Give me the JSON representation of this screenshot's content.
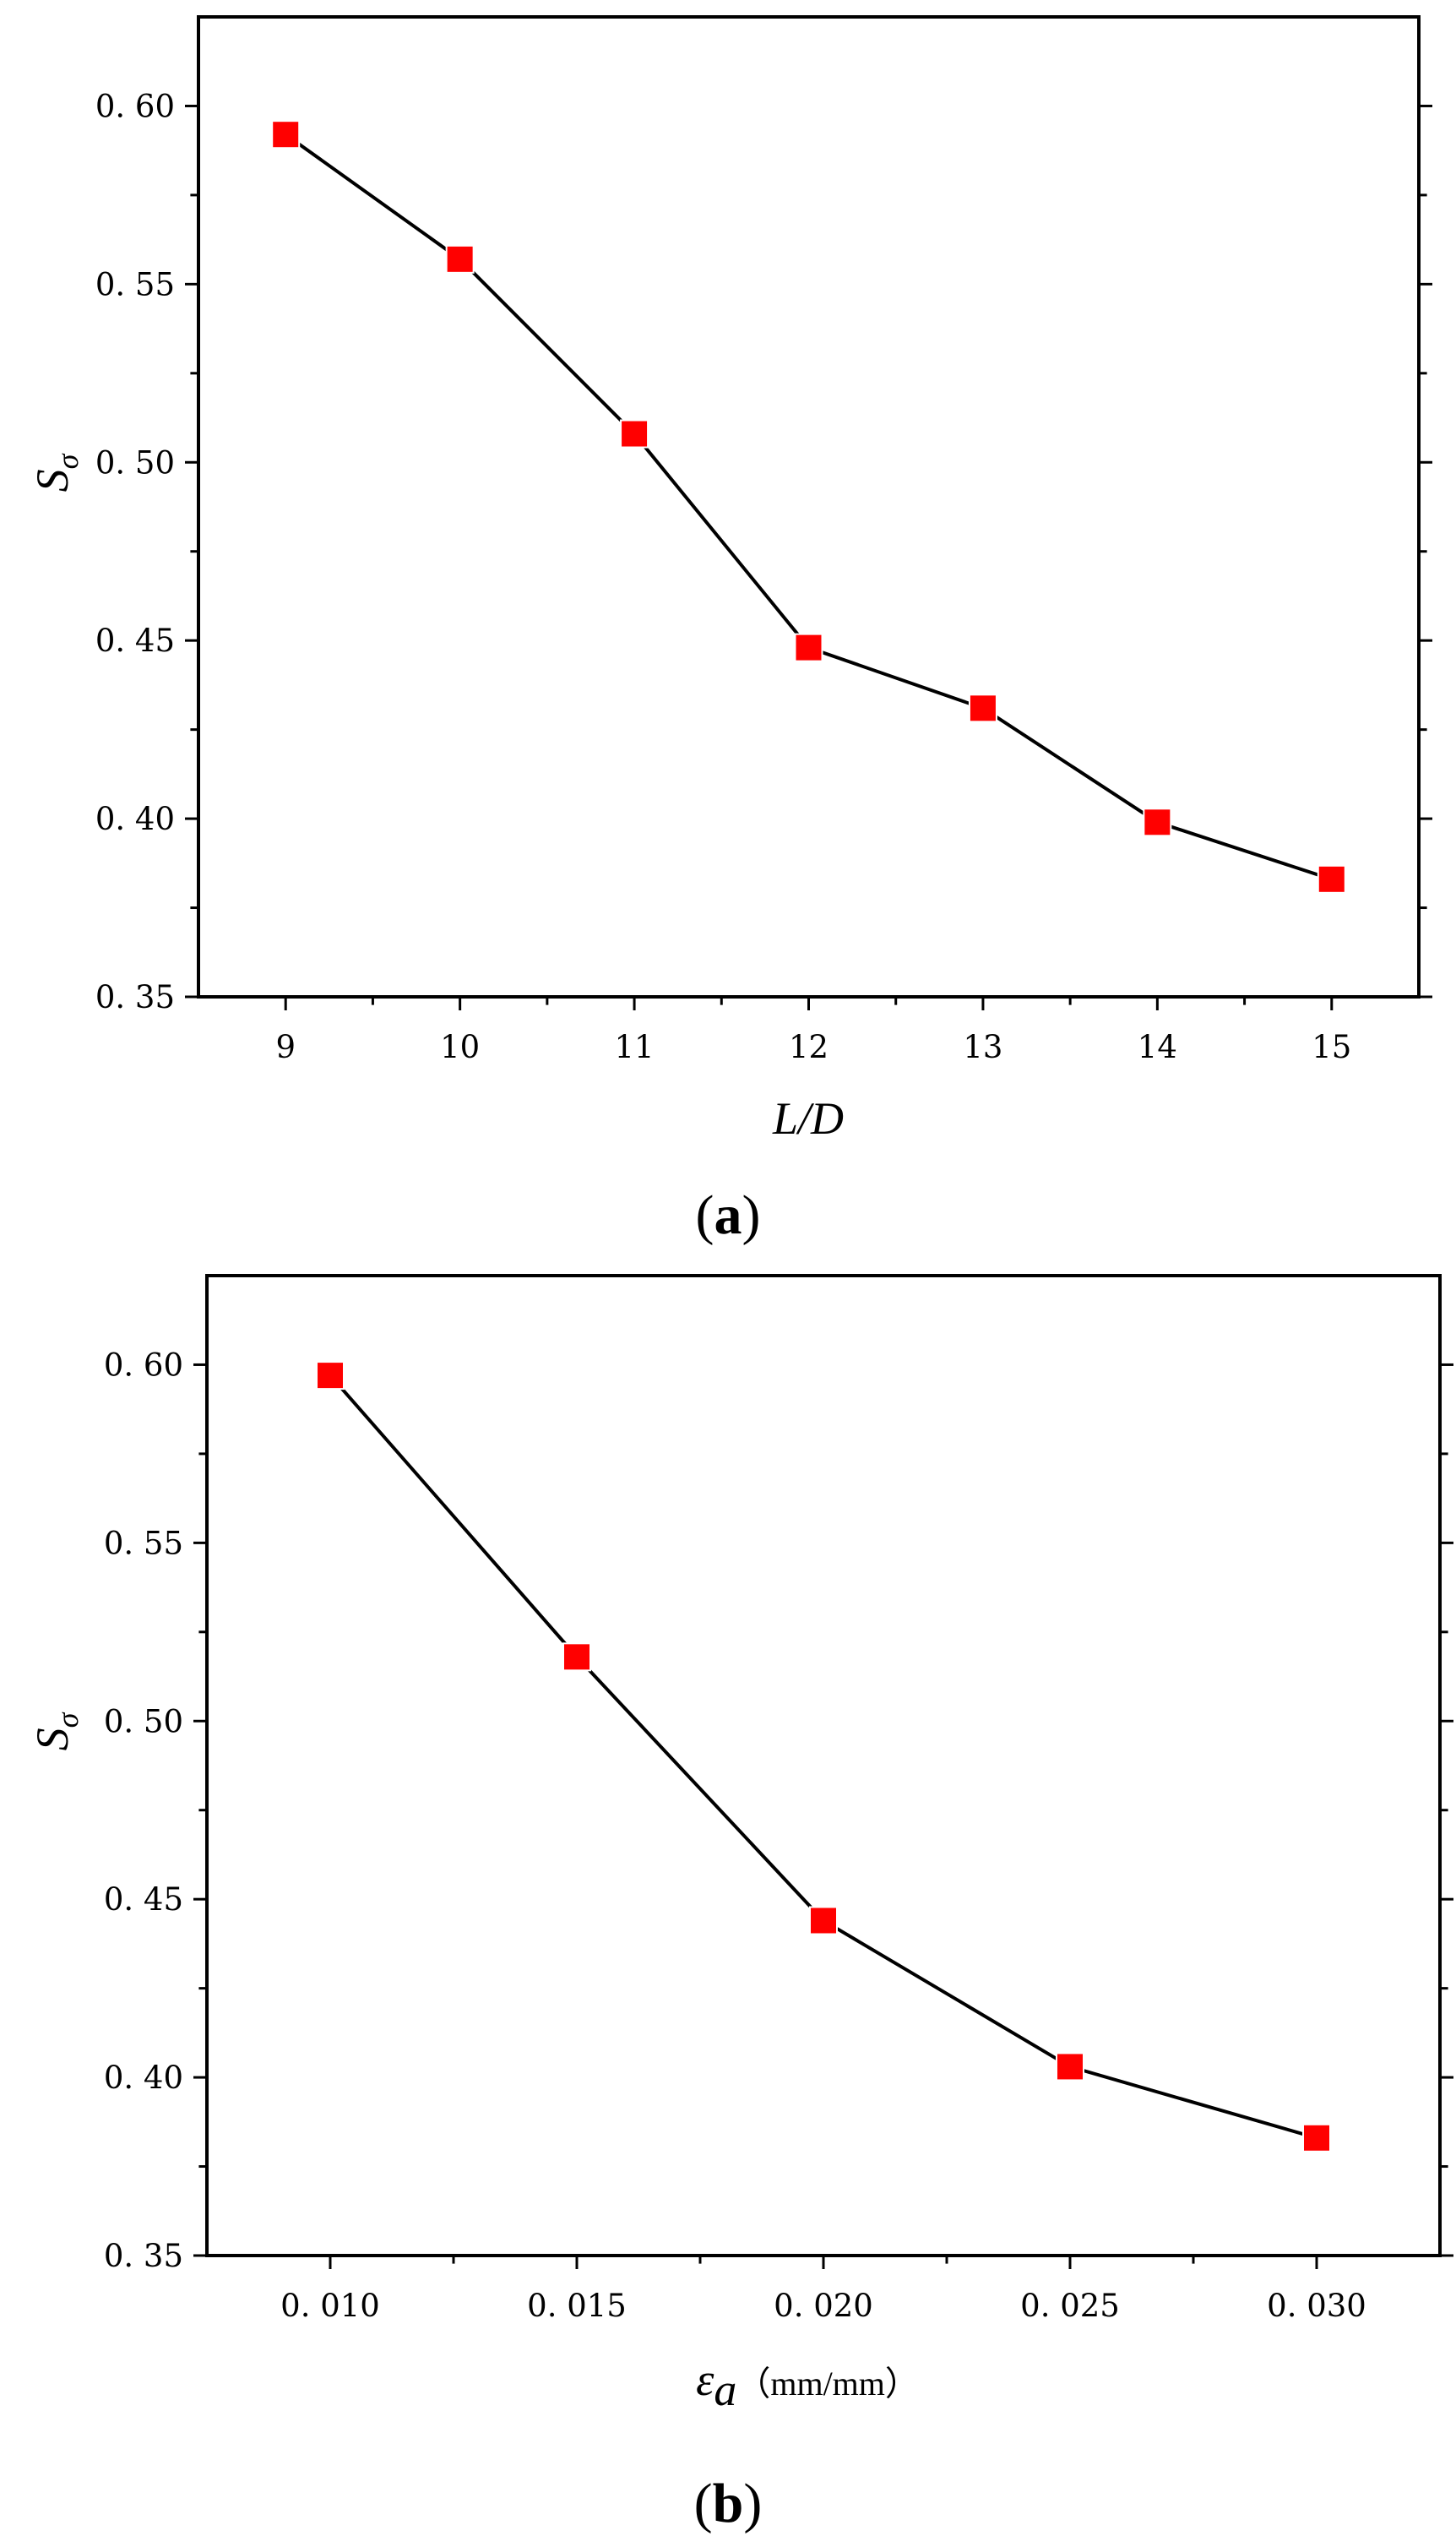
{
  "chart_data": [
    {
      "type": "line",
      "panel_label": {
        "open": "(",
        "letter": "a",
        "close": ")"
      },
      "x": [
        9,
        10,
        11,
        12,
        13,
        14,
        15
      ],
      "xticks": [
        "9",
        "10",
        "11",
        "12",
        "13",
        "14",
        "15"
      ],
      "xlim": [
        8.5,
        15.5
      ],
      "yticks": [
        "0. 35",
        "0. 40",
        "0. 45",
        "0. 50",
        "0. 55",
        "0. 60"
      ],
      "ylim": [
        0.35,
        0.625
      ],
      "xlabel": "L/D",
      "xunit": "",
      "ylabel": {
        "main": "S",
        "sub": "σ"
      },
      "series": [
        {
          "values": [
            0.592,
            0.557,
            0.508,
            0.448,
            0.431,
            0.399,
            0.383
          ],
          "line_color": "#000000",
          "marker_color": "#ff0000",
          "marker": "square"
        }
      ],
      "grid": false
    },
    {
      "type": "line",
      "panel_label": {
        "open": "(",
        "letter": "b",
        "close": ")"
      },
      "x": [
        0.01,
        0.015,
        0.02,
        0.025,
        0.03
      ],
      "xticks": [
        "0. 010",
        "0. 015",
        "0. 020",
        "0. 025",
        "0. 030"
      ],
      "xlim": [
        0.0075,
        0.0325
      ],
      "yticks": [
        "0. 35",
        "0. 40",
        "0. 45",
        "0. 50",
        "0. 55",
        "0. 60"
      ],
      "ylim": [
        0.35,
        0.625
      ],
      "xlabel": {
        "main": "ε",
        "sub": "a"
      },
      "xunit": "（mm/mm）",
      "ylabel": {
        "main": "S",
        "sub": "σ"
      },
      "series": [
        {
          "values": [
            0.597,
            0.518,
            0.444,
            0.403,
            0.383
          ],
          "line_color": "#000000",
          "marker_color": "#ff0000",
          "marker": "square"
        }
      ],
      "grid": false
    }
  ]
}
